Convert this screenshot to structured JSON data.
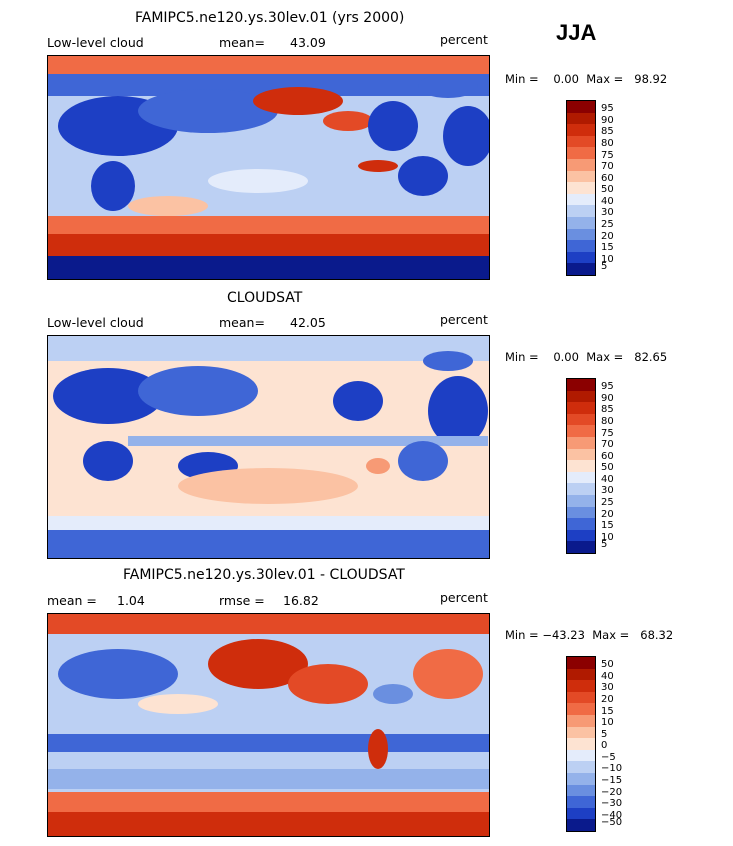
{
  "season": "JJA",
  "panels": [
    {
      "title": "FAMIPC5.ne120.ys.30lev.01 (yrs 2000)",
      "left_label": "Low-level cloud",
      "stat1_label": "mean=",
      "stat1_value": "43.09",
      "stat2_label": "",
      "stat2_value": "",
      "units": "percent",
      "minmax": "Min =    0.00  Max =   98.92",
      "colorbar_labels": [
        "95",
        "90",
        "85",
        "80",
        "75",
        "70",
        "60",
        "50",
        "40",
        "30",
        "25",
        "20",
        "15",
        "10",
        "5"
      ]
    },
    {
      "title": "CLOUDSAT",
      "left_label": "Low-level cloud",
      "stat1_label": "mean=",
      "stat1_value": "42.05",
      "stat2_label": "",
      "stat2_value": "",
      "units": "percent",
      "minmax": "Min =    0.00  Max =   82.65",
      "colorbar_labels": [
        "95",
        "90",
        "85",
        "80",
        "75",
        "70",
        "60",
        "50",
        "40",
        "30",
        "25",
        "20",
        "15",
        "10",
        "5"
      ]
    },
    {
      "title": "FAMIPC5.ne120.ys.30lev.01 - CLOUDSAT",
      "left_label": "mean =",
      "stat1_label": "",
      "stat1_value": "1.04",
      "stat2_label": "rmse =",
      "stat2_value": "16.82",
      "units": "percent",
      "minmax": "Min = −43.23  Max =   68.32",
      "colorbar_labels": [
        "50",
        "40",
        "30",
        "20",
        "15",
        "10",
        "5",
        "0",
        "−5",
        "−10",
        "−15",
        "−20",
        "−30",
        "−40",
        "−50"
      ]
    }
  ],
  "colormap": [
    "#8b0000",
    "#b01a00",
    "#cf2d0c",
    "#e34a26",
    "#f06b45",
    "#f79a75",
    "#fbc2a3",
    "#fde3d2",
    "#e4ecfb",
    "#bcd0f3",
    "#94b2ea",
    "#6a8fe0",
    "#3f66d6",
    "#1d3fc4",
    "#0a1a8c"
  ]
}
